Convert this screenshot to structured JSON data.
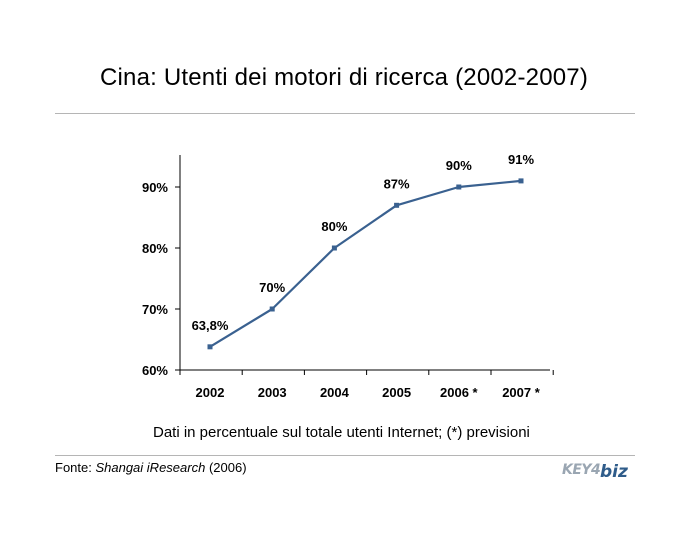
{
  "title": "Cina: Utenti dei motori di ricerca (2002-2007)",
  "note": "Dati in percentuale sul totale utenti Internet; (*) previsioni",
  "source": {
    "prefix": "Fonte: ",
    "name": "Shangai iResearch",
    "suffix": " (2006)"
  },
  "logo": {
    "key": "KEY4",
    "biz": "biz",
    "text": "KEY4biz"
  },
  "colors": {
    "line": "#3a6190",
    "axis": "#000000",
    "rule": "#b5b5b5"
  },
  "chart_data": {
    "type": "line",
    "title": "",
    "categories": [
      "2002",
      "2003",
      "2004",
      "2005",
      "2006 *",
      "2007 *"
    ],
    "series": [
      {
        "values": [
          63.8,
          70,
          80,
          87,
          90,
          91
        ]
      }
    ],
    "data_labels": [
      "63,8%",
      "70%",
      "80%",
      "87%",
      "90%",
      "91%"
    ],
    "y_ticks": [
      60,
      70,
      80,
      90
    ],
    "y_tick_labels": [
      "60%",
      "70%",
      "80%",
      "90%"
    ],
    "ylim": [
      60,
      95
    ],
    "grid": false,
    "legend": "none"
  }
}
